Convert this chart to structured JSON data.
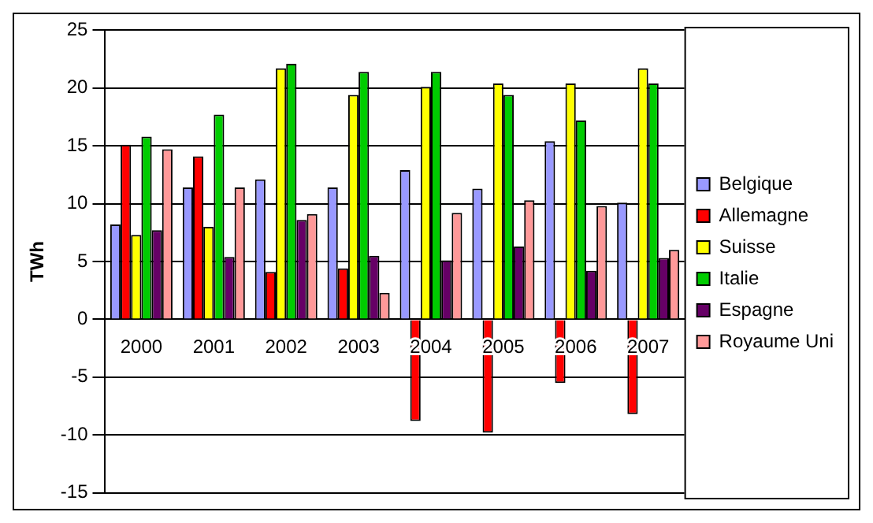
{
  "chart_data": {
    "type": "bar",
    "ylabel": "TWh",
    "categories": [
      "2000",
      "2001",
      "2002",
      "2003",
      "2004",
      "2005",
      "2006",
      "2007"
    ],
    "series": [
      {
        "name": "Belgique",
        "color": "#9999ff",
        "values": [
          8.2,
          11.4,
          12.1,
          11.4,
          12.9,
          11.3,
          15.4,
          10.1
        ]
      },
      {
        "name": "Allemagne",
        "color": "#ff0000",
        "values": [
          15.1,
          14.1,
          4.1,
          4.4,
          -8.8,
          -9.8,
          -5.5,
          -8.2
        ]
      },
      {
        "name": "Suisse",
        "color": "#ffff00",
        "values": [
          7.3,
          8.0,
          21.7,
          19.4,
          20.1,
          20.4,
          20.4,
          21.7
        ]
      },
      {
        "name": "Italie",
        "color": "#00cc00",
        "values": [
          15.8,
          17.7,
          22.1,
          21.4,
          21.4,
          19.4,
          17.2,
          20.4
        ]
      },
      {
        "name": "Espagne",
        "color": "#660066",
        "values": [
          7.7,
          5.4,
          8.6,
          5.5,
          5.1,
          6.3,
          4.2,
          5.3
        ]
      },
      {
        "name": "Royaume Uni",
        "color": "#ff9999",
        "values": [
          14.7,
          11.4,
          9.1,
          2.3,
          9.2,
          10.3,
          9.8,
          6.0
        ]
      }
    ],
    "ylim": [
      -15,
      25
    ],
    "yticks": [
      -15,
      -10,
      -5,
      0,
      5,
      10,
      15,
      20,
      25
    ],
    "grid": "y",
    "legend": "right"
  }
}
